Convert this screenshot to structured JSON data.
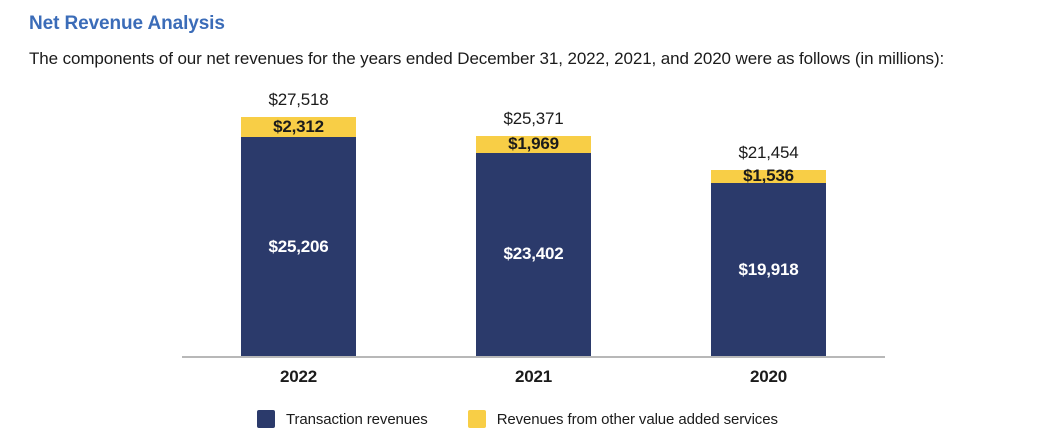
{
  "page": {
    "title": "Net Revenue Analysis",
    "subtitle": "The components of our net revenues for the years ended December 31, 2022, 2021, and 2020 were as follows (in millions):"
  },
  "colors": {
    "title_blue": "#3B6CB8",
    "transaction_navy": "#2B3A6B",
    "other_yellow": "#F8CE46",
    "axis_gray": "#B8B8B8",
    "text_dark": "#1B1B1B",
    "label_on_navy": "#FFFFFF"
  },
  "chart_data": {
    "type": "bar",
    "stacked": true,
    "title": "Net Revenue Analysis",
    "units": "USD millions",
    "categories": [
      "2022",
      "2021",
      "2020"
    ],
    "series": [
      {
        "name": "Transaction revenues",
        "color": "#2B3A6B",
        "values": [
          25206,
          23402,
          19918
        ],
        "labels": [
          "$25,206",
          "$23,402",
          "$19,918"
        ]
      },
      {
        "name": "Revenues from other value added services",
        "color": "#F8CE46",
        "values": [
          2312,
          1969,
          1536
        ],
        "labels": [
          "$2,312",
          "$1,969",
          "$1,536"
        ]
      }
    ],
    "totals": [
      27518,
      25371,
      21454
    ],
    "total_labels": [
      "$27,518",
      "$25,371",
      "$21,454"
    ],
    "ylim": [
      0,
      27518
    ],
    "grid": false,
    "legend_position": "bottom"
  },
  "legend": {
    "items": [
      {
        "label": "Transaction revenues",
        "color": "#2B3A6B"
      },
      {
        "label": "Revenues from other value added services",
        "color": "#F8CE46"
      }
    ]
  }
}
